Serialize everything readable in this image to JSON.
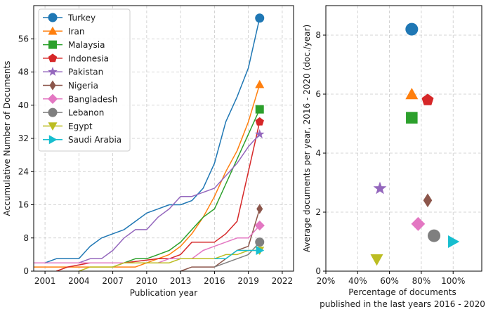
{
  "chart_data": [
    {
      "type": "line",
      "title": "",
      "xlabel": "Publication year",
      "ylabel": "Accumulative Number of Documents",
      "xlim": [
        2000,
        2023
      ],
      "ylim": [
        0,
        64
      ],
      "xticks": [
        "2001",
        "2004",
        "2007",
        "2010",
        "2013",
        "2016",
        "2019",
        "2022"
      ],
      "yticks": [
        "0",
        "8",
        "16",
        "24",
        "32",
        "40",
        "48",
        "56"
      ],
      "grid": true,
      "legend_position": "top-left",
      "series": [
        {
          "name": "Turkey",
          "color": "#1f77b4",
          "marker": "circle",
          "x": [
            2000,
            2001,
            2002,
            2003,
            2004,
            2005,
            2006,
            2007,
            2008,
            2009,
            2010,
            2011,
            2012,
            2013,
            2014,
            2015,
            2016,
            2017,
            2018,
            2019,
            2020
          ],
          "y": [
            2,
            2,
            3,
            3,
            3,
            6,
            8,
            9,
            10,
            12,
            14,
            15,
            16,
            16,
            17,
            20,
            26,
            36,
            42,
            49,
            61
          ]
        },
        {
          "name": "Iran",
          "color": "#ff7f0e",
          "marker": "triangle-up",
          "x": [
            2000,
            2001,
            2004,
            2008,
            2009,
            2010,
            2011,
            2012,
            2013,
            2014,
            2015,
            2016,
            2017,
            2018,
            2019,
            2020
          ],
          "y": [
            1,
            1,
            1,
            1,
            1,
            2,
            3,
            4,
            6,
            9,
            13,
            18,
            24,
            29,
            36,
            45
          ]
        },
        {
          "name": "Malaysia",
          "color": "#2ca02c",
          "marker": "square",
          "x": [
            2007,
            2008,
            2009,
            2010,
            2011,
            2012,
            2013,
            2014,
            2015,
            2016,
            2017,
            2018,
            2019,
            2020
          ],
          "y": [
            1,
            2,
            3,
            3,
            4,
            5,
            7,
            10,
            13,
            15,
            21,
            27,
            33,
            39
          ]
        },
        {
          "name": "Indonesia",
          "color": "#d62728",
          "marker": "pentagon",
          "x": [
            2002,
            2003,
            2005,
            2008,
            2011,
            2012,
            2013,
            2014,
            2015,
            2016,
            2017,
            2018,
            2019,
            2020
          ],
          "y": [
            0,
            1,
            2,
            2,
            3,
            3,
            4,
            7,
            7,
            7,
            9,
            12,
            24,
            36
          ]
        },
        {
          "name": "Pakistan",
          "color": "#9467bd",
          "marker": "star",
          "x": [
            2000,
            2001,
            2003,
            2004,
            2005,
            2006,
            2007,
            2008,
            2009,
            2010,
            2011,
            2012,
            2013,
            2014,
            2015,
            2016,
            2017,
            2018,
            2019,
            2020
          ],
          "y": [
            2,
            2,
            2,
            2,
            3,
            3,
            5,
            8,
            10,
            10,
            13,
            15,
            18,
            18,
            19,
            20,
            23,
            26,
            30,
            33
          ]
        },
        {
          "name": "Nigeria",
          "color": "#8c564b",
          "marker": "diamond",
          "x": [
            2013,
            2014,
            2016,
            2017,
            2018,
            2019,
            2020
          ],
          "y": [
            0,
            1,
            1,
            3,
            5,
            6,
            15
          ]
        },
        {
          "name": "Bangladesh",
          "color": "#e377c2",
          "marker": "diamond-wide",
          "x": [
            2000,
            2010,
            2011,
            2012,
            2014,
            2015,
            2016,
            2017,
            2018,
            2019,
            2020
          ],
          "y": [
            2,
            2,
            2,
            3,
            3,
            5,
            6,
            7,
            8,
            8,
            11
          ]
        },
        {
          "name": "Lebanon",
          "color": "#7f7f7f",
          "marker": "circle",
          "x": [
            2016,
            2017,
            2018,
            2019,
            2020
          ],
          "y": [
            1,
            2,
            3,
            4,
            7
          ]
        },
        {
          "name": "Egypt",
          "color": "#bcbd22",
          "marker": "triangle-down",
          "x": [
            2004,
            2005,
            2006,
            2007,
            2008,
            2012,
            2013,
            2016,
            2017,
            2018,
            2019,
            2020
          ],
          "y": [
            0,
            1,
            1,
            1,
            2,
            2,
            3,
            3,
            4,
            4,
            5,
            5
          ]
        },
        {
          "name": "Saudi Arabia",
          "color": "#17becf",
          "marker": "triangle-right",
          "x": [
            2016,
            2017,
            2018,
            2019,
            2020
          ],
          "y": [
            3,
            3,
            5,
            5,
            5
          ]
        }
      ]
    },
    {
      "type": "scatter",
      "title": "",
      "xlabel_line1": "Percentage of documents",
      "xlabel_line2": "published in the last years 2016 - 2020",
      "ylabel": "Average documents per year, 2016 - 2020 (doc./year)",
      "xlim": [
        20,
        118
      ],
      "ylim": [
        0,
        9
      ],
      "xticks": [
        "20%",
        "40%",
        "60%",
        "80%",
        "100%"
      ],
      "yticks": [
        "0",
        "2",
        "4",
        "6",
        "8"
      ],
      "grid": true,
      "points": [
        {
          "name": "Turkey",
          "x": 74,
          "y": 8.2,
          "color": "#1f77b4",
          "marker": "circle"
        },
        {
          "name": "Iran",
          "x": 74,
          "y": 6.0,
          "color": "#ff7f0e",
          "marker": "triangle-up"
        },
        {
          "name": "Malaysia",
          "x": 74,
          "y": 5.2,
          "color": "#2ca02c",
          "marker": "square"
        },
        {
          "name": "Indonesia",
          "x": 84,
          "y": 5.8,
          "color": "#d62728",
          "marker": "pentagon"
        },
        {
          "name": "Pakistan",
          "x": 54,
          "y": 2.8,
          "color": "#9467bd",
          "marker": "star"
        },
        {
          "name": "Nigeria",
          "x": 84,
          "y": 2.4,
          "color": "#8c564b",
          "marker": "diamond"
        },
        {
          "name": "Bangladesh",
          "x": 78,
          "y": 1.6,
          "color": "#e377c2",
          "marker": "diamond-wide"
        },
        {
          "name": "Lebanon",
          "x": 88,
          "y": 1.2,
          "color": "#7f7f7f",
          "marker": "circle"
        },
        {
          "name": "Egypt",
          "x": 52,
          "y": 0.4,
          "color": "#bcbd22",
          "marker": "triangle-down"
        },
        {
          "name": "Saudi Arabia",
          "x": 100,
          "y": 1.0,
          "color": "#17becf",
          "marker": "triangle-right"
        }
      ]
    }
  ]
}
